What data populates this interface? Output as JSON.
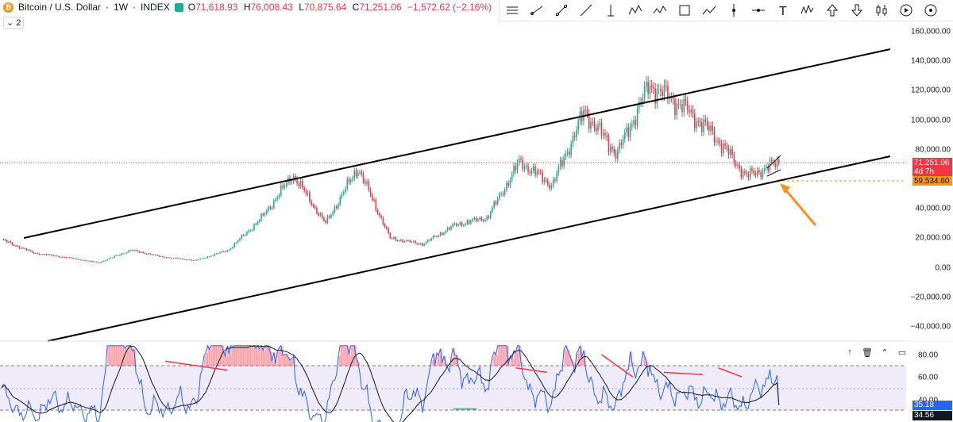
{
  "symbol": {
    "name": "Bitcoin / U.S. Dollar",
    "interval": "1W",
    "exchange": "INDEX",
    "icon": "bitcoin-icon",
    "icon_glyph": "₿",
    "sep": "·"
  },
  "ohlc": {
    "o_label": "O",
    "o_value": "71,618.93",
    "h_label": "H",
    "h_value": "76,008.43",
    "l_label": "L",
    "l_value": "70,875.64",
    "c_label": "C",
    "c_value": "71,251.06",
    "change": "−1,572.62 (−2.16%)"
  },
  "indicators_toggle": "2",
  "toolbar": [
    {
      "name": "horizontal-lines-icon"
    },
    {
      "name": "ray-icon"
    },
    {
      "name": "trend-line-icon"
    },
    {
      "name": "line-tool-icon"
    },
    {
      "name": "vertical-line-icon"
    },
    {
      "name": "pattern-icon"
    },
    {
      "name": "wave-icon"
    },
    {
      "name": "rectangle-icon"
    },
    {
      "name": "path-icon"
    },
    {
      "name": "vertical-marker-icon"
    },
    {
      "name": "horizontal-marker-icon"
    },
    {
      "name": "text-icon",
      "glyph": "T"
    },
    {
      "name": "elliott-wave-icon"
    },
    {
      "name": "arrow-up-icon"
    },
    {
      "name": "arrow-down-icon"
    },
    {
      "name": "candles-icon"
    },
    {
      "name": "replay-icon"
    },
    {
      "name": "alert-icon"
    }
  ],
  "price_axis": {
    "ticks": [
      "160,000.00",
      "140,000.00",
      "120,000.00",
      "100,000.00",
      "80,000.00",
      "60,000.00",
      "40,000.00",
      "20,000.00",
      "0.00",
      "−20,000.00",
      "−40,000.00"
    ],
    "last_price": "71,251.06",
    "countdown": "4d 7h",
    "level_label": "59,534.60"
  },
  "rsi": {
    "ticks": [
      "80.00",
      "60.00",
      "40.00"
    ],
    "value": "35.18",
    "ma_value": "34.56",
    "controls": [
      {
        "name": "move-up-icon",
        "glyph": "↑"
      },
      {
        "name": "delete-icon",
        "glyph": "🗑"
      },
      {
        "name": "collapse-icon",
        "glyph": "⌃"
      },
      {
        "name": "maximize-icon",
        "glyph": "▭"
      }
    ]
  },
  "colors": {
    "up": "#22ab94",
    "down": "#f23645",
    "rsi_line": "#2962ff",
    "rsi_band": "#7e57c2",
    "arrow": "#f7931a",
    "channel": "#000000"
  },
  "chart_data": {
    "type": "candlestick",
    "title": "Bitcoin / U.S. Dollar · 1W · INDEX",
    "ylim": [
      -40000,
      160000
    ],
    "close_path": [
      [
        "2017-12",
        19000
      ],
      [
        "2018-02",
        10000
      ],
      [
        "2018-06",
        7000
      ],
      [
        "2019-01",
        3500
      ],
      [
        "2019-06",
        12000
      ],
      [
        "2019-12",
        7200
      ],
      [
        "2020-03",
        5000
      ],
      [
        "2020-10",
        12000
      ],
      [
        "2021-01",
        33000
      ],
      [
        "2021-04",
        63000
      ],
      [
        "2021-07",
        30000
      ],
      [
        "2021-11",
        68000
      ],
      [
        "2022-06",
        20000
      ],
      [
        "2022-11",
        16000
      ],
      [
        "2023-04",
        29000
      ],
      [
        "2023-10",
        34000
      ],
      [
        "2024-03",
        72000
      ],
      [
        "2024-08",
        56000
      ],
      [
        "2024-12",
        106000
      ],
      [
        "2025-04",
        77000
      ],
      [
        "2025-08",
        124000
      ],
      [
        "2025-10",
        110000
      ],
      [
        "2026-01",
        90000
      ],
      [
        "2026-02",
        62000
      ],
      [
        "2026-03",
        71251
      ]
    ],
    "channel": {
      "upper": [
        [
          19000,
          2017.9
        ],
        [
          148000,
          2026.3
        ]
      ],
      "lower": [
        [
          -49000,
          2018.3
        ],
        [
          76000,
          2026.3
        ]
      ]
    },
    "horizontal_levels": [
      71251.06,
      59534.6
    ],
    "rsi": {
      "overbought": 70,
      "oversold": 30,
      "mid": 50,
      "last": 35.18,
      "ma_last": 34.56
    }
  }
}
